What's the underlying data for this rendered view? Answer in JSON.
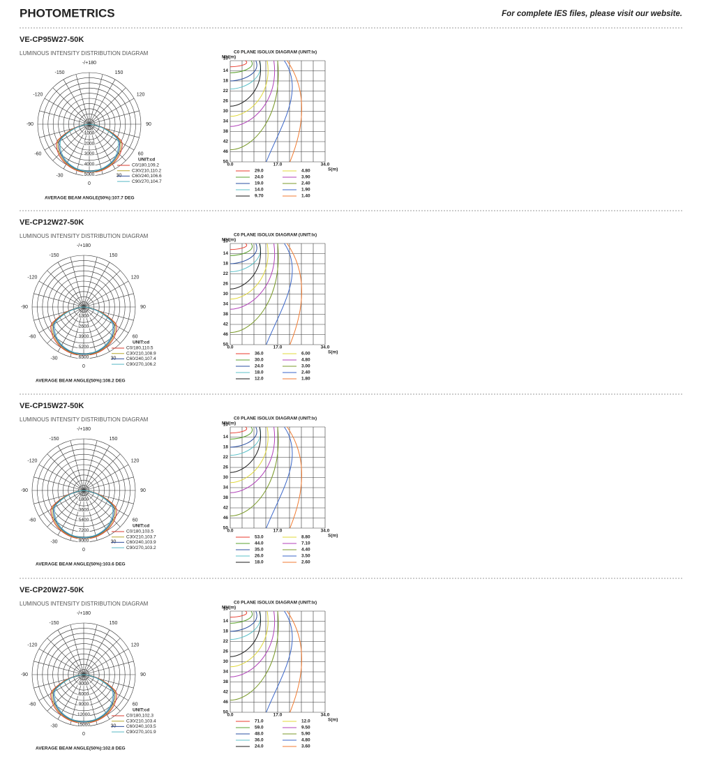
{
  "header": {
    "title": "PHOTOMETRICS",
    "note": "For complete IES files, please visit our website."
  },
  "sections": [
    {
      "model": "VE-CP95W27-50K",
      "polar": {
        "title": "LUMINOUS INTENSITY DISTRIBUTION DIAGRAM",
        "angles": [
          "-/+180",
          "-150",
          "150",
          "-120",
          "120",
          "-90",
          "90",
          "-60",
          "60",
          "-30",
          "30",
          "0"
        ],
        "rings": [
          "1000",
          "2000",
          "3000",
          "4000",
          "5000"
        ],
        "unit": "UNIT:cd",
        "legend": [
          "C0/180,109.2",
          "C30/210,110.2",
          "C60/240,106.6",
          "C90/270,104.7"
        ],
        "beam_angle": "AVERAGE BEAM ANGLE(50%):107.7 DEG"
      },
      "isolux": {
        "title": "C0 PLANE ISOLUX DIAGRAM (UNIT:lx)",
        "y_label": "MH(m)",
        "x_label": "S(m)",
        "y_ticks": [
          "10",
          "14",
          "18",
          "22",
          "26",
          "30",
          "34",
          "38",
          "42",
          "46",
          "50"
        ],
        "x_ticks": [
          "0.0",
          "17.0",
          "34.0"
        ],
        "levels": [
          "29.0",
          "24.0",
          "19.0",
          "14.0",
          "9.70",
          "4.80",
          "3.90",
          "2.40",
          "1.90",
          "1.40"
        ]
      }
    },
    {
      "model": "VE-CP12W27-50K",
      "polar": {
        "title": "LUMINOUS INTENSITY DISTRIBUTION DIAGRAM",
        "angles": [
          "-/+180",
          "-150",
          "150",
          "-120",
          "120",
          "-90",
          "90",
          "-60",
          "60",
          "-30",
          "30",
          "0"
        ],
        "rings": [
          "1300",
          "2600",
          "3900",
          "5200",
          "6500"
        ],
        "unit": "UNIT:cd",
        "legend": [
          "C0/180,110.5",
          "C30/210,108.9",
          "C60/240,107.4",
          "C90/270,106.2"
        ],
        "beam_angle": "AVERAGE BEAM ANGLE(50%):108.2 DEG"
      },
      "isolux": {
        "title": "C0 PLANE ISOLUX DIAGRAM (UNIT:lx)",
        "y_label": "MH(m)",
        "x_label": "S(m)",
        "y_ticks": [
          "10",
          "14",
          "18",
          "22",
          "26",
          "30",
          "34",
          "38",
          "42",
          "46",
          "50"
        ],
        "x_ticks": [
          "0.0",
          "17.0",
          "34.0"
        ],
        "levels": [
          "36.0",
          "30.0",
          "24.0",
          "18.0",
          "12.0",
          "6.00",
          "4.80",
          "3.00",
          "2.40",
          "1.80"
        ]
      }
    },
    {
      "model": "VE-CP15W27-50K",
      "polar": {
        "title": "LUMINOUS INTENSITY DISTRIBUTION DIAGRAM",
        "angles": [
          "-/+180",
          "-150",
          "150",
          "-120",
          "120",
          "-90",
          "90",
          "-60",
          "60",
          "-30",
          "30",
          "0"
        ],
        "rings": [
          "1800",
          "3600",
          "5400",
          "7200",
          "9000"
        ],
        "unit": "UNIT:cd",
        "legend": [
          "C0/180,103.5",
          "C30/210,103.7",
          "C60/240,103.9",
          "C90/270,103.2"
        ],
        "beam_angle": "AVERAGE BEAM ANGLE(50%):103.6 DEG"
      },
      "isolux": {
        "title": "C0 PLANE ISOLUX DIAGRAM (UNIT:lx)",
        "y_label": "MH(m)",
        "x_label": "S(m)",
        "y_ticks": [
          "10",
          "14",
          "18",
          "22",
          "26",
          "30",
          "34",
          "38",
          "42",
          "46",
          "50"
        ],
        "x_ticks": [
          "0.0",
          "17.0",
          "34.0"
        ],
        "levels": [
          "53.0",
          "44.0",
          "35.0",
          "26.0",
          "18.0",
          "8.80",
          "7.10",
          "4.40",
          "3.50",
          "2.60"
        ]
      }
    },
    {
      "model": "VE-CP20W27-50K",
      "polar": {
        "title": "LUMINOUS INTENSITY DISTRIBUTION DIAGRAM",
        "angles": [
          "-/+180",
          "-150",
          "150",
          "-120",
          "120",
          "-90",
          "90",
          "-60",
          "60",
          "-30",
          "30",
          "0"
        ],
        "rings": [
          "3000",
          "6000",
          "9000",
          "12000",
          "15000"
        ],
        "unit": "UNIT:cd",
        "legend": [
          "C0/180,102.3",
          "C30/210,103.4",
          "C60/240,103.5",
          "C90/270,101.9"
        ],
        "beam_angle": "AVERAGE BEAM ANGLE(50%):102.8 DEG"
      },
      "isolux": {
        "title": "C0 PLANE ISOLUX DIAGRAM (UNIT:lx)",
        "y_label": "MH(m)",
        "x_label": "S(m)",
        "y_ticks": [
          "10",
          "14",
          "18",
          "22",
          "26",
          "30",
          "34",
          "38",
          "42",
          "46",
          "50"
        ],
        "x_ticks": [
          "0.0",
          "17.0",
          "34.0"
        ],
        "levels": [
          "71.0",
          "59.0",
          "48.0",
          "36.0",
          "24.0",
          "12.0",
          "9.50",
          "5.90",
          "4.80",
          "3.60"
        ]
      }
    }
  ]
}
